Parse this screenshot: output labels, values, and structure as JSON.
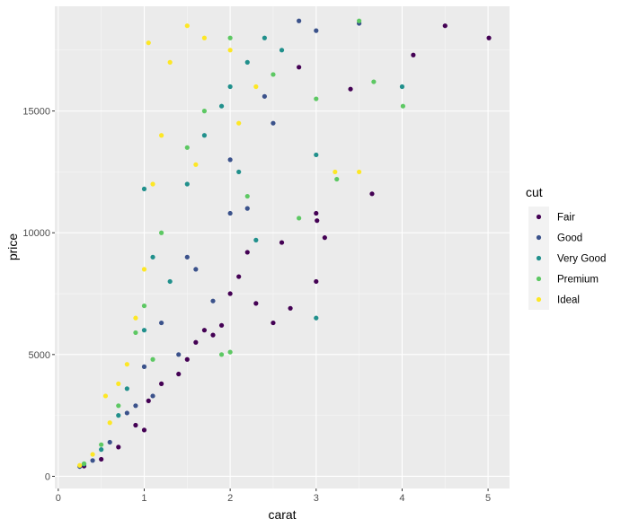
{
  "chart_data": {
    "type": "scatter",
    "title": "",
    "xlabel": "carat",
    "ylabel": "price",
    "xlim": [
      -0.04,
      5.25
    ],
    "ylim": [
      -500,
      19300
    ],
    "x_ticks": [
      0,
      1,
      2,
      3,
      4,
      5
    ],
    "y_ticks": [
      0,
      5000,
      10000,
      15000
    ],
    "x_tick_labels": [
      "0",
      "1",
      "2",
      "3",
      "4",
      "5"
    ],
    "y_tick_labels": [
      "0",
      "5000",
      "10000",
      "15000"
    ],
    "grid": true,
    "panel_background": "#ebebeb",
    "grid_major_color": "#ffffff",
    "legend": {
      "title": "cut",
      "position": "right",
      "background": "#f2f2f2",
      "entries": [
        {
          "label": "Fair",
          "color": "#440154"
        },
        {
          "label": "Good",
          "color": "#3b528b"
        },
        {
          "label": "Very Good",
          "color": "#21908c"
        },
        {
          "label": "Premium",
          "color": "#5dc863"
        },
        {
          "label": "Ideal",
          "color": "#fde725"
        }
      ]
    },
    "series": [
      {
        "name": "Fair",
        "color": "#440154",
        "points": [
          [
            0.3,
            420
          ],
          [
            0.5,
            700
          ],
          [
            0.7,
            1200
          ],
          [
            0.9,
            2100
          ],
          [
            1.0,
            1900
          ],
          [
            1.05,
            3100
          ],
          [
            1.2,
            3800
          ],
          [
            1.4,
            4200
          ],
          [
            1.5,
            4800
          ],
          [
            1.6,
            5500
          ],
          [
            1.7,
            6000
          ],
          [
            1.8,
            5800
          ],
          [
            1.9,
            6200
          ],
          [
            2.0,
            7500
          ],
          [
            2.1,
            8200
          ],
          [
            2.2,
            9200
          ],
          [
            2.3,
            7100
          ],
          [
            2.5,
            6300
          ],
          [
            2.7,
            6900
          ],
          [
            3.0,
            8000
          ],
          [
            3.0,
            10800
          ],
          [
            3.01,
            10500
          ],
          [
            3.1,
            9800
          ],
          [
            3.4,
            15900
          ],
          [
            3.65,
            11600
          ],
          [
            4.13,
            17300
          ],
          [
            4.5,
            18500
          ],
          [
            5.01,
            18000
          ],
          [
            2.6,
            9600
          ],
          [
            2.8,
            16800
          ]
        ]
      },
      {
        "name": "Good",
        "color": "#3b528b",
        "points": [
          [
            0.25,
            400
          ],
          [
            0.4,
            650
          ],
          [
            0.6,
            1400
          ],
          [
            0.8,
            2600
          ],
          [
            1.0,
            4500
          ],
          [
            1.2,
            6300
          ],
          [
            1.5,
            9000
          ],
          [
            1.6,
            8500
          ],
          [
            2.0,
            13000
          ],
          [
            2.2,
            11000
          ],
          [
            2.5,
            14500
          ],
          [
            2.8,
            18700
          ],
          [
            3.0,
            18300
          ],
          [
            3.5,
            18600
          ],
          [
            1.4,
            5000
          ],
          [
            1.8,
            7200
          ],
          [
            2.0,
            10800
          ],
          [
            2.4,
            15600
          ],
          [
            0.9,
            2900
          ],
          [
            1.1,
            3300
          ]
        ]
      },
      {
        "name": "Very Good",
        "color": "#21908c",
        "points": [
          [
            0.3,
            500
          ],
          [
            0.5,
            1100
          ],
          [
            0.7,
            2500
          ],
          [
            1.0,
            6000
          ],
          [
            1.1,
            9000
          ],
          [
            1.5,
            12000
          ],
          [
            1.7,
            14000
          ],
          [
            2.0,
            16000
          ],
          [
            2.1,
            12500
          ],
          [
            2.2,
            17000
          ],
          [
            2.4,
            18000
          ],
          [
            3.0,
            13200
          ],
          [
            3.0,
            6500
          ],
          [
            4.0,
            16000
          ],
          [
            0.8,
            3600
          ],
          [
            1.3,
            8000
          ],
          [
            1.9,
            15200
          ],
          [
            2.3,
            9700
          ],
          [
            2.6,
            17500
          ],
          [
            1.0,
            11800
          ]
        ]
      },
      {
        "name": "Premium",
        "color": "#5dc863",
        "points": [
          [
            0.3,
            520
          ],
          [
            0.5,
            1300
          ],
          [
            0.7,
            2900
          ],
          [
            1.0,
            7000
          ],
          [
            1.2,
            10000
          ],
          [
            1.5,
            13500
          ],
          [
            1.7,
            15000
          ],
          [
            2.0,
            18000
          ],
          [
            2.2,
            11500
          ],
          [
            2.5,
            16500
          ],
          [
            3.0,
            15500
          ],
          [
            3.24,
            12200
          ],
          [
            3.5,
            18700
          ],
          [
            3.67,
            16200
          ],
          [
            4.01,
            15200
          ],
          [
            1.9,
            5000
          ],
          [
            2.0,
            5100
          ],
          [
            2.8,
            10600
          ],
          [
            1.1,
            4800
          ],
          [
            0.9,
            5900
          ]
        ]
      },
      {
        "name": "Ideal",
        "color": "#fde725",
        "points": [
          [
            0.25,
            450
          ],
          [
            0.4,
            900
          ],
          [
            0.6,
            2200
          ],
          [
            0.7,
            3800
          ],
          [
            0.9,
            6500
          ],
          [
            1.0,
            8500
          ],
          [
            1.1,
            12000
          ],
          [
            1.2,
            14000
          ],
          [
            1.3,
            17000
          ],
          [
            1.5,
            18500
          ],
          [
            1.6,
            12800
          ],
          [
            1.7,
            18000
          ],
          [
            2.0,
            17500
          ],
          [
            2.1,
            14500
          ],
          [
            2.3,
            16000
          ],
          [
            3.22,
            12500
          ],
          [
            3.5,
            12500
          ],
          [
            0.55,
            3300
          ],
          [
            0.8,
            4600
          ],
          [
            1.05,
            17800
          ]
        ]
      }
    ]
  }
}
